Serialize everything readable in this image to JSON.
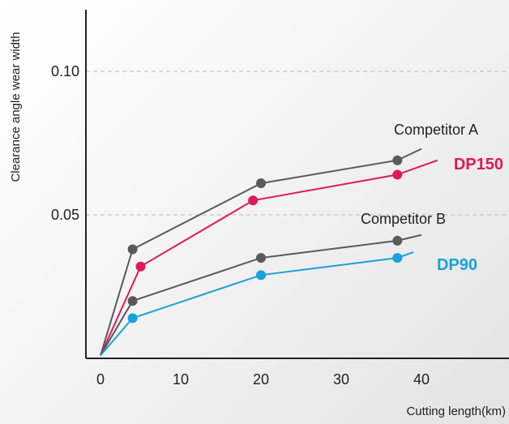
{
  "chart_data": {
    "type": "line",
    "xlabel": "Cutting length(km)",
    "ylabel": "Clearance angle wear width",
    "xlim": [
      0,
      50
    ],
    "ylim": [
      0,
      0.12
    ],
    "xticks": [
      0,
      10,
      20,
      30,
      40
    ],
    "xtick_labels": [
      "0",
      "10",
      "20",
      "30",
      "40"
    ],
    "yticks": [
      0.05,
      0.1
    ],
    "ytick_labels": [
      "0.05",
      "0.10"
    ],
    "grid": "horizontal dashed at y ticks",
    "series": [
      {
        "name": "Competitor A",
        "color": "#5a5a5a",
        "label_color": "#222222",
        "label_bold": false,
        "x": [
          0,
          4,
          20,
          37,
          40
        ],
        "y": [
          0.001,
          0.038,
          0.061,
          0.069,
          0.073
        ],
        "markers": [
          1,
          2,
          3
        ]
      },
      {
        "name": "DP150",
        "color": "#e0195a",
        "label_color": "#e0195a",
        "label_bold": true,
        "x": [
          0,
          5,
          19,
          37,
          42
        ],
        "y": [
          0.001,
          0.032,
          0.055,
          0.064,
          0.069
        ],
        "markers": [
          1,
          2,
          3
        ]
      },
      {
        "name": "Competitor B",
        "color": "#5a5a5a",
        "label_color": "#222222",
        "label_bold": false,
        "x": [
          0,
          4,
          20,
          37,
          40
        ],
        "y": [
          0.001,
          0.02,
          0.035,
          0.041,
          0.043
        ],
        "markers": [
          1,
          2,
          3
        ]
      },
      {
        "name": "DP90",
        "color": "#1aa0dc",
        "label_color": "#1aa0dc",
        "label_bold": true,
        "x": [
          0,
          4,
          20,
          37,
          39
        ],
        "y": [
          0.001,
          0.014,
          0.029,
          0.035,
          0.037
        ],
        "markers": [
          1,
          2,
          3
        ]
      }
    ]
  }
}
